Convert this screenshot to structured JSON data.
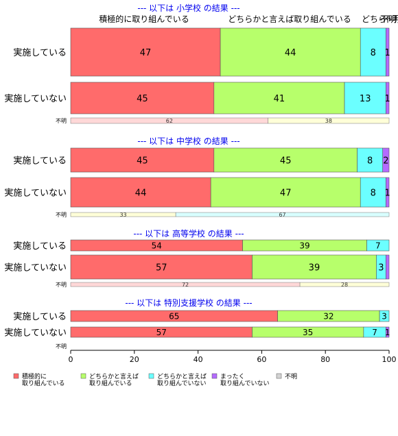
{
  "chart_data": {
    "type": "bar",
    "orientation": "horizontal",
    "stacked": true,
    "xlim": [
      0,
      100
    ],
    "x_ticks": [
      "0",
      "20",
      "40",
      "60",
      "80",
      "100"
    ],
    "column_headers": [
      {
        "text": "積極的に取り組んでいる"
      },
      {
        "text": "どちらかと言えば取り組んでいる"
      },
      {
        "text": "どちら"
      },
      {
        "text": "不明"
      },
      {
        "text": "不明"
      }
    ],
    "legend": {
      "placement": "bottom",
      "entries": [
        {
          "label1": "積極的に",
          "label2": "取り組んでいる",
          "color": "#FF6B6B"
        },
        {
          "label1": "どちらかと言えば",
          "label2": "取り組んでいる",
          "color": "#B7FF6B"
        },
        {
          "label1": "どちらかと言えば",
          "label2": "取り組んでいない",
          "color": "#6BFFFF"
        },
        {
          "label1": "まったく",
          "label2": "取り組んでいない",
          "color": "#B46BFF"
        },
        {
          "label1": "不明",
          "label2": "",
          "color": "#D3D3D3"
        }
      ]
    },
    "panels": [
      {
        "title": "--- 以下は 小学校 の結果 ---",
        "rows": [
          {
            "category": "実施している",
            "values": [
              47,
              44,
              8,
              1,
              0
            ],
            "labels": [
              "47",
              "44",
              "8",
              "1",
              ""
            ]
          },
          {
            "category": "実施していない",
            "values": [
              45,
              41,
              13,
              1,
              0
            ],
            "labels": [
              "45",
              "41",
              "13",
              "1",
              ""
            ]
          }
        ],
        "unknown": {
          "label": "不明",
          "values": [
            62,
            38
          ],
          "labels": [
            "62",
            "38"
          ],
          "colors": [
            "#FFD8D8",
            "#FFFFD8"
          ]
        }
      },
      {
        "title": "--- 以下は 中学校 の結果 ---",
        "rows": [
          {
            "category": "実施している",
            "values": [
              45,
              45,
              8,
              2,
              0
            ],
            "labels": [
              "45",
              "45",
              "8",
              "2",
              ""
            ]
          },
          {
            "category": "実施していない",
            "values": [
              44,
              47,
              8,
              1,
              0
            ],
            "labels": [
              "44",
              "47",
              "8",
              "1",
              ""
            ]
          }
        ],
        "unknown": {
          "label": "不明",
          "values": [
            33,
            67
          ],
          "labels": [
            "33",
            "67"
          ],
          "colors": [
            "#FFFFD8",
            "#D8FFFF"
          ]
        }
      },
      {
        "title": "--- 以下は 高等学校 の結果 ---",
        "rows": [
          {
            "category": "実施している",
            "values": [
              54,
              39,
              7,
              0,
              0
            ],
            "labels": [
              "54",
              "39",
              "7",
              "",
              ""
            ]
          },
          {
            "category": "実施していない",
            "values": [
              57,
              39,
              3,
              1,
              0
            ],
            "labels": [
              "57",
              "39",
              "3",
              "",
              ""
            ]
          }
        ],
        "unknown": {
          "label": "不明",
          "values": [
            72,
            28
          ],
          "labels": [
            "72",
            "28"
          ],
          "colors": [
            "#FFD8D8",
            "#FFFFD8"
          ]
        }
      },
      {
        "title": "--- 以下は 特別支援学校 の結果 ---",
        "rows": [
          {
            "category": "実施している",
            "values": [
              65,
              32,
              3,
              0,
              0
            ],
            "labels": [
              "65",
              "32",
              "3",
              "",
              ""
            ]
          },
          {
            "category": "実施していない",
            "values": [
              57,
              35,
              7,
              1,
              0
            ],
            "labels": [
              "57",
              "35",
              "7",
              "1",
              ""
            ]
          }
        ],
        "unknown": {
          "label": "不明",
          "values": [],
          "labels": [],
          "colors": []
        }
      }
    ]
  }
}
